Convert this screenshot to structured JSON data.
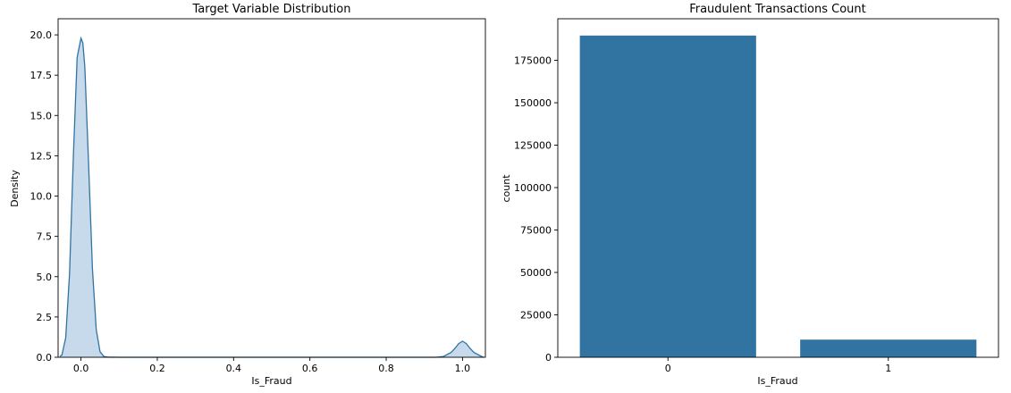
{
  "chart_data": [
    {
      "type": "area",
      "title": "Target Variable Distribution",
      "xlabel": "Is_Fraud",
      "ylabel": "Density",
      "xlim": [
        -0.06,
        1.06
      ],
      "ylim": [
        0,
        21
      ],
      "xticks": [
        "0.0",
        "0.2",
        "0.4",
        "0.6",
        "0.8",
        "1.0"
      ],
      "yticks": [
        "0.0",
        "2.5",
        "5.0",
        "7.5",
        "10.0",
        "12.5",
        "15.0",
        "17.5",
        "20.0"
      ],
      "grid": false,
      "color": "#3274A1",
      "fill_color": "#C6DAEB",
      "series": [
        {
          "x": [
            -0.055,
            -0.05,
            -0.04,
            -0.03,
            -0.02,
            -0.01,
            0.0,
            0.005,
            0.01,
            0.02,
            0.03,
            0.04,
            0.05,
            0.06,
            0.07,
            0.1,
            0.5,
            0.93,
            0.95,
            0.97,
            0.98,
            0.99,
            1.0,
            1.01,
            1.02,
            1.03,
            1.05,
            1.055
          ],
          "y": [
            0.05,
            0.15,
            1.2,
            5.2,
            12.5,
            18.6,
            19.8,
            19.5,
            18.0,
            12.0,
            5.5,
            1.7,
            0.35,
            0.05,
            0.01,
            0.0,
            0.0,
            0.0,
            0.05,
            0.3,
            0.55,
            0.85,
            1.0,
            0.85,
            0.55,
            0.3,
            0.05,
            0.0
          ]
        }
      ]
    },
    {
      "type": "bar",
      "title": "Fraudulent Transactions Count",
      "xlabel": "Is_Fraud",
      "ylabel": "count",
      "categories": [
        "0",
        "1"
      ],
      "values": [
        189600,
        10400
      ],
      "ylim": [
        0,
        199500
      ],
      "yticks": [
        "0",
        "25000",
        "50000",
        "75000",
        "100000",
        "125000",
        "150000",
        "175000"
      ],
      "grid": false,
      "color": "#3274A1"
    }
  ]
}
